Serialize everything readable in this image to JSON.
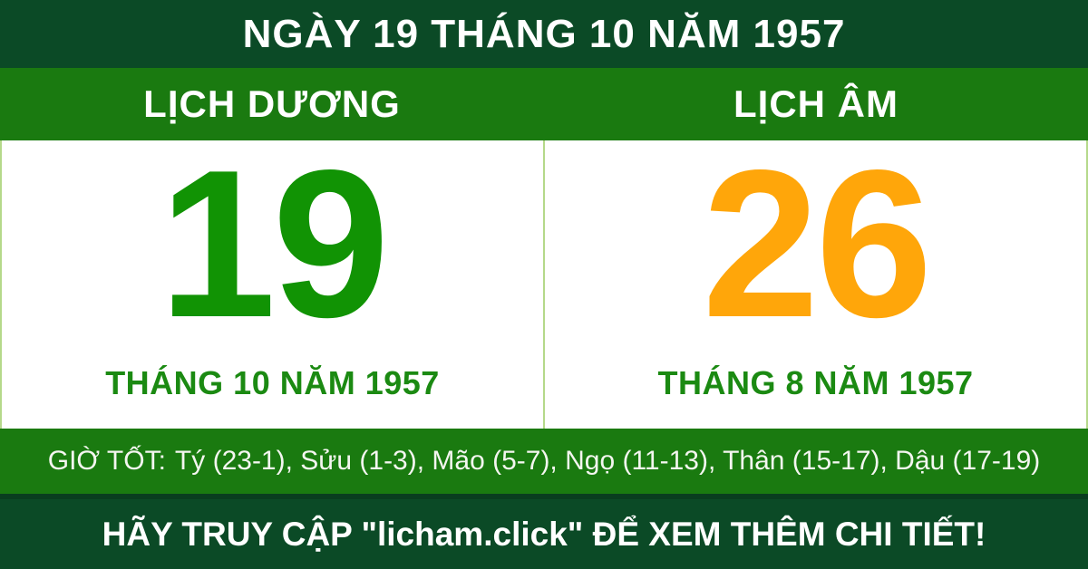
{
  "header": {
    "title": "NGÀY 19 THÁNG 10 NĂM 1957"
  },
  "calendars": {
    "solar": {
      "label": "LỊCH DƯƠNG",
      "day": "19",
      "month_year": "THÁNG 10 NĂM 1957"
    },
    "lunar": {
      "label": "LỊCH ÂM",
      "day": "26",
      "month_year": "THÁNG 8 NĂM 1957"
    }
  },
  "good_hours": {
    "label": "GIỜ TỐT:",
    "list": "Tý (23-1), Sửu (1-3), Mão (5-7), Ngọ (11-13), Thân (15-17), Dậu (17-19)"
  },
  "footer": {
    "message": "HÃY TRUY CẬP \"licham.click\" ĐỂ XEM THÊM CHI TIẾT!"
  },
  "colors": {
    "header_bg": "#0b4a26",
    "band_bg": "#1a7a10",
    "solar_day": "#119304",
    "lunar_day": "#ffa60a",
    "month_text": "#1b8a12",
    "divider": "#b5d98a",
    "footer_bg": "#0b4a26"
  }
}
